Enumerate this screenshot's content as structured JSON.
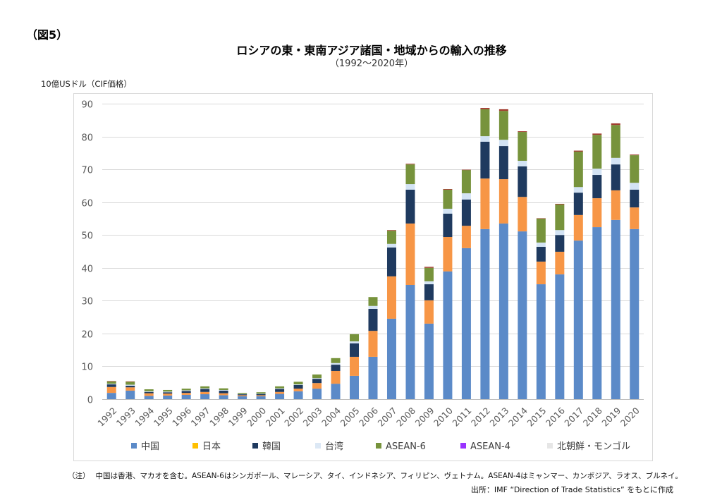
{
  "figure_label": "（図5）",
  "chart_data": {
    "type": "bar",
    "stacked": true,
    "title": "ロシアの東・東南アジア諸国・地域からの輸入の推移",
    "subtitle": "（1992～2020年）",
    "ylabel": "10億USドル（CIF価格）",
    "xlabel": "",
    "ylim": [
      0,
      90
    ],
    "yticks": [
      0,
      10,
      20,
      30,
      40,
      50,
      60,
      70,
      80,
      90
    ],
    "grid": true,
    "legend_position": "bottom",
    "categories": [
      "1992",
      "1993",
      "1994",
      "1995",
      "1996",
      "1997",
      "1998",
      "1999",
      "2000",
      "2001",
      "2002",
      "2003",
      "2004",
      "2005",
      "2006",
      "2007",
      "2008",
      "2009",
      "2010",
      "2011",
      "2012",
      "2013",
      "2014",
      "2015",
      "2016",
      "2017",
      "2018",
      "2019",
      "2020"
    ],
    "series": [
      {
        "name": "中国",
        "color": "#5B8AC8",
        "legend_color": "#5B8AC8",
        "values": [
          1.9,
          2.6,
          1.0,
          1.1,
          1.3,
          1.5,
          1.2,
          0.9,
          0.9,
          1.6,
          2.4,
          3.2,
          4.7,
          7.1,
          12.9,
          24.5,
          34.8,
          23.0,
          38.9,
          46.0,
          51.8,
          53.5,
          51.1,
          35.0,
          38.0,
          48.3,
          52.4,
          54.6,
          51.8
        ]
      },
      {
        "name": "日本",
        "color": "#F79646",
        "legend_color": "#FFC000",
        "values": [
          1.8,
          1.0,
          0.8,
          0.6,
          0.6,
          0.7,
          0.6,
          0.3,
          0.3,
          0.6,
          0.8,
          1.7,
          3.9,
          5.8,
          7.9,
          12.9,
          18.7,
          7.1,
          10.5,
          6.8,
          15.4,
          13.5,
          10.5,
          6.9,
          6.9,
          7.8,
          8.8,
          9.0,
          6.6
        ]
      },
      {
        "name": "韓国",
        "color": "#1F3A5F",
        "legend_color": "#1F3A5F",
        "values": [
          0.8,
          0.5,
          0.4,
          0.4,
          0.6,
          0.9,
          0.8,
          0.3,
          0.4,
          0.9,
          1.1,
          1.3,
          1.9,
          4.1,
          6.7,
          8.8,
          10.3,
          4.9,
          7.1,
          8.0,
          11.2,
          10.1,
          9.3,
          4.5,
          5.1,
          6.8,
          7.1,
          7.9,
          5.4
        ]
      },
      {
        "name": "台湾",
        "color": "#D3E3F4",
        "legend_color": "#DCE8F5",
        "values": [
          0.2,
          0.3,
          0.2,
          0.2,
          0.2,
          0.2,
          0.2,
          0.1,
          0.1,
          0.2,
          0.2,
          0.2,
          0.5,
          0.6,
          0.9,
          1.1,
          1.7,
          0.9,
          1.5,
          1.9,
          1.7,
          1.9,
          1.7,
          1.3,
          1.5,
          1.7,
          1.9,
          2.0,
          2.1
        ]
      },
      {
        "name": "ASEAN-6",
        "color": "#77933C",
        "legend_color": "#77933C",
        "values": [
          0.7,
          0.9,
          0.6,
          0.5,
          0.5,
          0.6,
          0.5,
          0.3,
          0.4,
          0.6,
          0.8,
          1.1,
          1.5,
          2.2,
          2.7,
          4.0,
          6.0,
          4.1,
          5.8,
          7.1,
          8.2,
          8.8,
          8.8,
          7.3,
          7.8,
          10.8,
          10.3,
          10.0,
          8.4
        ]
      },
      {
        "name": "ASEAN-4",
        "color": "#A23B2E",
        "legend_color": "#9933FF",
        "values": [
          0.1,
          0.1,
          0.0,
          0.0,
          0.0,
          0.0,
          0.0,
          0.0,
          0.0,
          0.0,
          0.0,
          0.0,
          0.0,
          0.0,
          0.0,
          0.2,
          0.2,
          0.3,
          0.2,
          0.1,
          0.4,
          0.5,
          0.2,
          0.1,
          0.2,
          0.3,
          0.4,
          0.5,
          0.2
        ]
      },
      {
        "name": "北朝鮮・モンゴル",
        "color": "#E6E6E6",
        "legend_color": "#E6E6E6",
        "values": [
          0.0,
          0.0,
          0.0,
          0.0,
          0.0,
          0.0,
          0.0,
          0.0,
          0.0,
          0.0,
          0.0,
          0.0,
          0.0,
          0.0,
          0.0,
          0.0,
          0.0,
          0.0,
          0.0,
          0.0,
          0.0,
          0.0,
          0.0,
          0.0,
          0.0,
          0.0,
          0.0,
          0.0,
          0.0
        ]
      }
    ]
  },
  "footnote": {
    "label": "（注）",
    "text": "中国は香港、マカオを含む。ASEAN-6はシンガポール、マレーシア、タイ、インドネシア、フィリピン、ヴェトナム。ASEAN-4はミャンマー、カンボジア、ラオス、ブルネイ。"
  },
  "source": "出所：IMF “Direction of Trade Statistics” をもとに作成"
}
